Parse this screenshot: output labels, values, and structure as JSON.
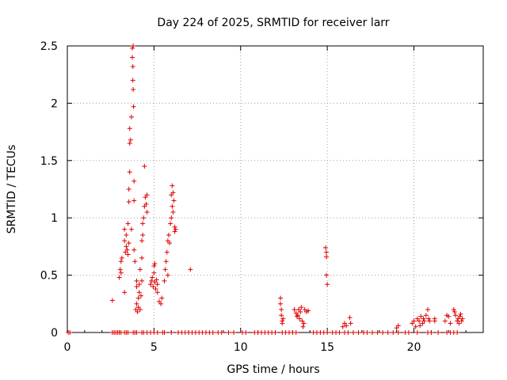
{
  "chart_data": {
    "type": "scatter",
    "title": "Day 224 of 2025, SRMTID for receiver larr",
    "xlabel": "GPS time / hours",
    "ylabel": "SRMTID / TECUs",
    "xlim": [
      0,
      24
    ],
    "ylim": [
      0,
      2.5
    ],
    "xticks": [
      0,
      5,
      10,
      15,
      20
    ],
    "xtick_labels": [
      "0",
      "5",
      "10",
      "15",
      "20"
    ],
    "yticks": [
      0,
      0.5,
      1,
      1.5,
      2,
      2.5
    ],
    "ytick_labels": [
      "0",
      "0.5",
      "1",
      "1.5",
      "2",
      "2.5"
    ],
    "grid": true,
    "marker": "+",
    "color": "#e00000",
    "series": [
      {
        "name": "SRMTID",
        "points": [
          [
            0.05,
            0
          ],
          [
            0.15,
            0
          ],
          [
            2.6,
            0.28
          ],
          [
            2.6,
            0
          ],
          [
            2.7,
            0
          ],
          [
            2.8,
            0
          ],
          [
            2.9,
            0
          ],
          [
            3.0,
            0
          ],
          [
            3.1,
            0
          ],
          [
            3.3,
            0
          ],
          [
            3.4,
            0
          ],
          [
            3.5,
            0
          ],
          [
            3.8,
            0
          ],
          [
            3.9,
            0
          ],
          [
            4.0,
            0
          ],
          [
            4.3,
            0
          ],
          [
            4.4,
            0
          ],
          [
            4.6,
            0
          ],
          [
            3.0,
            0.48
          ],
          [
            3.05,
            0.55
          ],
          [
            3.1,
            0.62
          ],
          [
            3.1,
            0.52
          ],
          [
            3.15,
            0.65
          ],
          [
            3.3,
            0.35
          ],
          [
            3.3,
            0.8
          ],
          [
            3.3,
            0.9
          ],
          [
            3.35,
            0.7
          ],
          [
            3.4,
            0.75
          ],
          [
            3.4,
            0.85
          ],
          [
            3.45,
            0.72
          ],
          [
            3.5,
            0.95
          ],
          [
            3.5,
            0.68
          ],
          [
            3.55,
            0.78
          ],
          [
            3.55,
            1.14
          ],
          [
            3.55,
            1.25
          ],
          [
            3.6,
            1.4
          ],
          [
            3.6,
            1.65
          ],
          [
            3.6,
            1.78
          ],
          [
            3.65,
            1.68
          ],
          [
            3.7,
            1.88
          ],
          [
            3.7,
            0.9
          ],
          [
            3.75,
            2.48
          ],
          [
            3.75,
            2.4
          ],
          [
            3.78,
            2.32
          ],
          [
            3.78,
            2.2
          ],
          [
            3.8,
            2.5
          ],
          [
            3.8,
            2.12
          ],
          [
            3.82,
            1.97
          ],
          [
            3.85,
            1.32
          ],
          [
            3.85,
            1.15
          ],
          [
            3.85,
            0.72
          ],
          [
            3.9,
            0.62
          ],
          [
            3.95,
            0.2
          ],
          [
            4.0,
            0.25
          ],
          [
            4.0,
            0.4
          ],
          [
            4.0,
            0.45
          ],
          [
            4.05,
            0.18
          ],
          [
            4.1,
            0.3
          ],
          [
            4.1,
            0.22
          ],
          [
            4.15,
            0.35
          ],
          [
            4.15,
            0.42
          ],
          [
            4.2,
            0.2
          ],
          [
            4.25,
            0.32
          ],
          [
            4.3,
            0.45
          ],
          [
            4.2,
            0.55
          ],
          [
            4.3,
            0.65
          ],
          [
            4.3,
            0.8
          ],
          [
            4.35,
            0.85
          ],
          [
            4.35,
            0.95
          ],
          [
            4.4,
            1.0
          ],
          [
            4.45,
            1.1
          ],
          [
            4.45,
            1.45
          ],
          [
            4.5,
            1.18
          ],
          [
            4.55,
            1.12
          ],
          [
            4.6,
            1.2
          ],
          [
            4.6,
            1.05
          ],
          [
            4.8,
            0.42
          ],
          [
            4.85,
            0.45
          ],
          [
            4.9,
            0.48
          ],
          [
            4.95,
            0.4
          ],
          [
            5.0,
            0.52
          ],
          [
            5.0,
            0.58
          ],
          [
            5.05,
            0.6
          ],
          [
            5.05,
            0.44
          ],
          [
            5.1,
            0.38
          ],
          [
            5.15,
            0.46
          ],
          [
            5.2,
            0.35
          ],
          [
            5.2,
            0.42
          ],
          [
            5.3,
            0.27
          ],
          [
            5.4,
            0.25
          ],
          [
            5.45,
            0.3
          ],
          [
            5.6,
            0.45
          ],
          [
            5.65,
            0.55
          ],
          [
            5.7,
            0.62
          ],
          [
            5.75,
            0.7
          ],
          [
            5.8,
            0.8
          ],
          [
            5.8,
            0.5
          ],
          [
            5.85,
            0.85
          ],
          [
            5.9,
            0.78
          ],
          [
            5.95,
            0.95
          ],
          [
            6.0,
            1.0
          ],
          [
            6.0,
            1.2
          ],
          [
            6.05,
            1.1
          ],
          [
            6.05,
            1.28
          ],
          [
            6.1,
            1.22
          ],
          [
            6.1,
            1.05
          ],
          [
            6.15,
            1.15
          ],
          [
            6.2,
            0.92
          ],
          [
            6.2,
            0.88
          ],
          [
            6.25,
            0.9
          ],
          [
            4.8,
            0
          ],
          [
            5.0,
            0
          ],
          [
            5.2,
            0
          ],
          [
            5.5,
            0
          ],
          [
            5.6,
            0
          ],
          [
            6.0,
            0
          ],
          [
            6.4,
            0
          ],
          [
            6.6,
            0
          ],
          [
            6.8,
            0
          ],
          [
            7.0,
            0
          ],
          [
            7.2,
            0
          ],
          [
            7.4,
            0
          ],
          [
            7.6,
            0
          ],
          [
            7.8,
            0
          ],
          [
            8.0,
            0
          ],
          [
            8.2,
            0
          ],
          [
            8.4,
            0
          ],
          [
            8.7,
            0
          ],
          [
            8.9,
            0
          ],
          [
            9.3,
            0
          ],
          [
            9.6,
            0
          ],
          [
            10.1,
            0
          ],
          [
            10.3,
            0
          ],
          [
            7.1,
            0.55
          ],
          [
            10.8,
            0
          ],
          [
            11.0,
            0
          ],
          [
            11.2,
            0
          ],
          [
            11.4,
            0
          ],
          [
            11.6,
            0
          ],
          [
            11.8,
            0
          ],
          [
            12.0,
            0
          ],
          [
            12.4,
            0
          ],
          [
            12.6,
            0
          ],
          [
            12.8,
            0
          ],
          [
            13.0,
            0
          ],
          [
            13.2,
            0
          ],
          [
            14.2,
            0
          ],
          [
            14.4,
            0
          ],
          [
            14.6,
            0
          ],
          [
            14.8,
            0
          ],
          [
            15.0,
            0
          ],
          [
            15.3,
            0
          ],
          [
            15.5,
            0
          ],
          [
            15.7,
            0
          ],
          [
            16.0,
            0
          ],
          [
            16.2,
            0
          ],
          [
            16.5,
            0
          ],
          [
            16.8,
            0
          ],
          [
            17.1,
            0
          ],
          [
            17.3,
            0
          ],
          [
            17.6,
            0
          ],
          [
            17.9,
            0
          ],
          [
            18.2,
            0
          ],
          [
            18.5,
            0
          ],
          [
            18.8,
            0
          ],
          [
            19.1,
            0
          ],
          [
            19.5,
            0
          ],
          [
            19.7,
            0
          ],
          [
            20.2,
            0
          ],
          [
            20.8,
            0
          ],
          [
            21.0,
            0
          ],
          [
            21.4,
            0
          ],
          [
            21.9,
            0
          ],
          [
            22.1,
            0
          ],
          [
            22.3,
            0
          ],
          [
            22.5,
            0
          ],
          [
            12.3,
            0.3
          ],
          [
            12.3,
            0.25
          ],
          [
            12.35,
            0.2
          ],
          [
            12.35,
            0.15
          ],
          [
            12.4,
            0.1
          ],
          [
            12.4,
            0.08
          ],
          [
            12.45,
            0.12
          ],
          [
            13.1,
            0.2
          ],
          [
            13.2,
            0.17
          ],
          [
            13.25,
            0.14
          ],
          [
            13.3,
            0.15
          ],
          [
            13.35,
            0.2
          ],
          [
            13.4,
            0.12
          ],
          [
            13.45,
            0.18
          ],
          [
            13.5,
            0.22
          ],
          [
            13.55,
            0.1
          ],
          [
            13.6,
            0.05
          ],
          [
            13.65,
            0.08
          ],
          [
            13.7,
            0.2
          ],
          [
            13.8,
            0.18
          ],
          [
            13.9,
            0.19
          ],
          [
            14.9,
            0.74
          ],
          [
            14.95,
            0.7
          ],
          [
            14.95,
            0.66
          ],
          [
            14.95,
            0.5
          ],
          [
            15.0,
            0.42
          ],
          [
            15.9,
            0.05
          ],
          [
            16.0,
            0.08
          ],
          [
            16.1,
            0.06
          ],
          [
            16.3,
            0.13
          ],
          [
            16.35,
            0.08
          ],
          [
            19.0,
            0.04
          ],
          [
            19.1,
            0.06
          ],
          [
            19.9,
            0.08
          ],
          [
            20.0,
            0.1
          ],
          [
            20.1,
            0.05
          ],
          [
            20.2,
            0.12
          ],
          [
            20.3,
            0.1
          ],
          [
            20.35,
            0.06
          ],
          [
            20.4,
            0.14
          ],
          [
            20.5,
            0.08
          ],
          [
            20.55,
            0.12
          ],
          [
            20.6,
            0.1
          ],
          [
            20.7,
            0.15
          ],
          [
            20.8,
            0.2
          ],
          [
            20.85,
            0.12
          ],
          [
            20.9,
            0.1
          ],
          [
            21.2,
            0.12
          ],
          [
            21.2,
            0.1
          ],
          [
            21.8,
            0.1
          ],
          [
            21.9,
            0.15
          ],
          [
            22.0,
            0.14
          ],
          [
            22.1,
            0.08
          ],
          [
            22.3,
            0.2
          ],
          [
            22.35,
            0.18
          ],
          [
            22.4,
            0.15
          ],
          [
            22.5,
            0.1
          ],
          [
            22.55,
            0.12
          ],
          [
            22.6,
            0.08
          ],
          [
            22.65,
            0.14
          ],
          [
            22.7,
            0.16
          ],
          [
            22.75,
            0.1
          ],
          [
            22.8,
            0.12
          ]
        ]
      }
    ]
  }
}
